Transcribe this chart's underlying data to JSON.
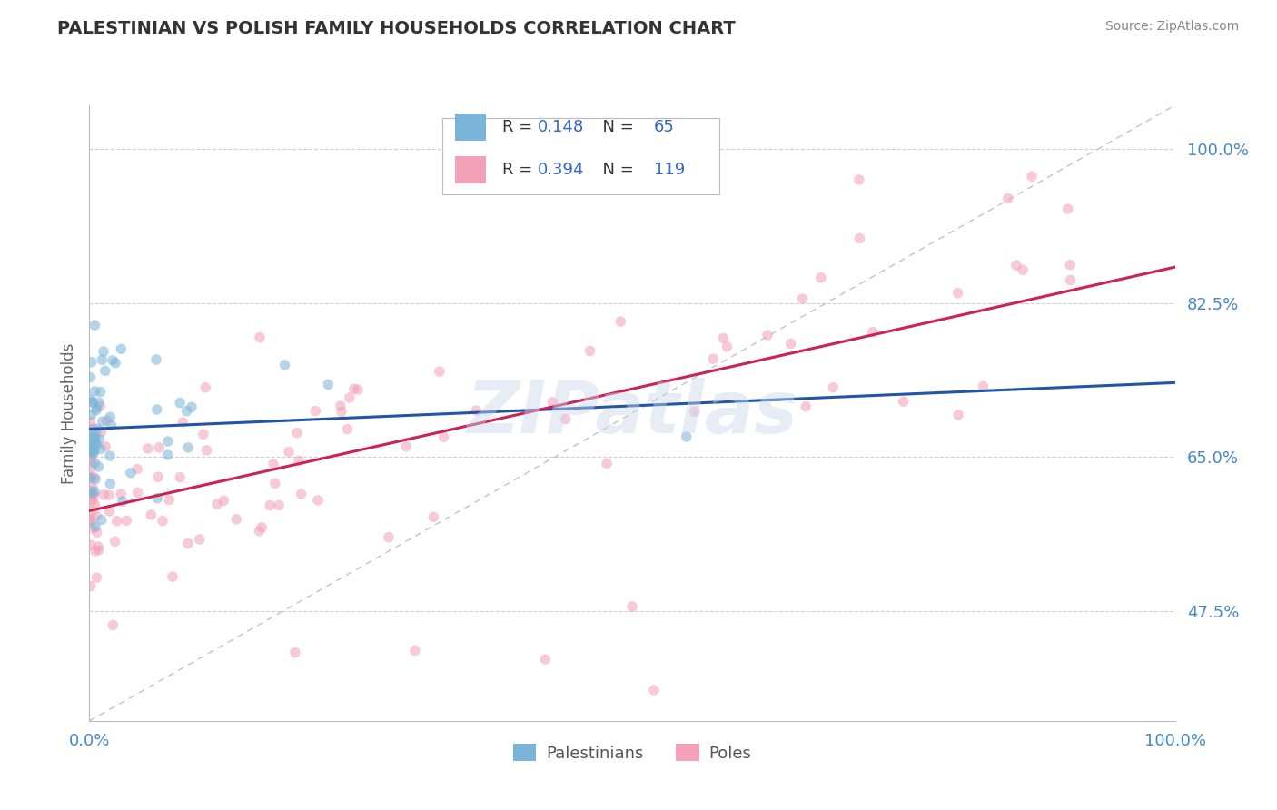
{
  "title": "PALESTINIAN VS POLISH FAMILY HOUSEHOLDS CORRELATION CHART",
  "source_text": "Source: ZipAtlas.com",
  "ylabel": "Family Households",
  "watermark": "ZIPatlas",
  "xlim": [
    0,
    1.0
  ],
  "ylim": [
    0.35,
    1.05
  ],
  "xtick_labels": [
    "0.0%",
    "100.0%"
  ],
  "ytick_labels": [
    "47.5%",
    "65.0%",
    "82.5%",
    "100.0%"
  ],
  "ytick_values": [
    0.475,
    0.65,
    0.825,
    1.0
  ],
  "palestinians": {
    "R": 0.148,
    "N": 65,
    "color": "#7ab4d8",
    "line_color": "#2255aa",
    "marker_size": 70,
    "alpha": 0.55
  },
  "poles": {
    "R": 0.394,
    "N": 119,
    "color": "#f4a0b8",
    "line_color": "#cc2255",
    "marker_size": 70,
    "alpha": 0.55
  },
  "grid_color": "#cccccc",
  "ref_line_color": "#aaaaaa",
  "background_color": "#ffffff",
  "title_color": "#333333",
  "axis_label_color": "#666666",
  "tick_label_color": "#4488cc",
  "source_color": "#888888",
  "r_label_color": "#333333",
  "n_label_color": "#3366cc"
}
